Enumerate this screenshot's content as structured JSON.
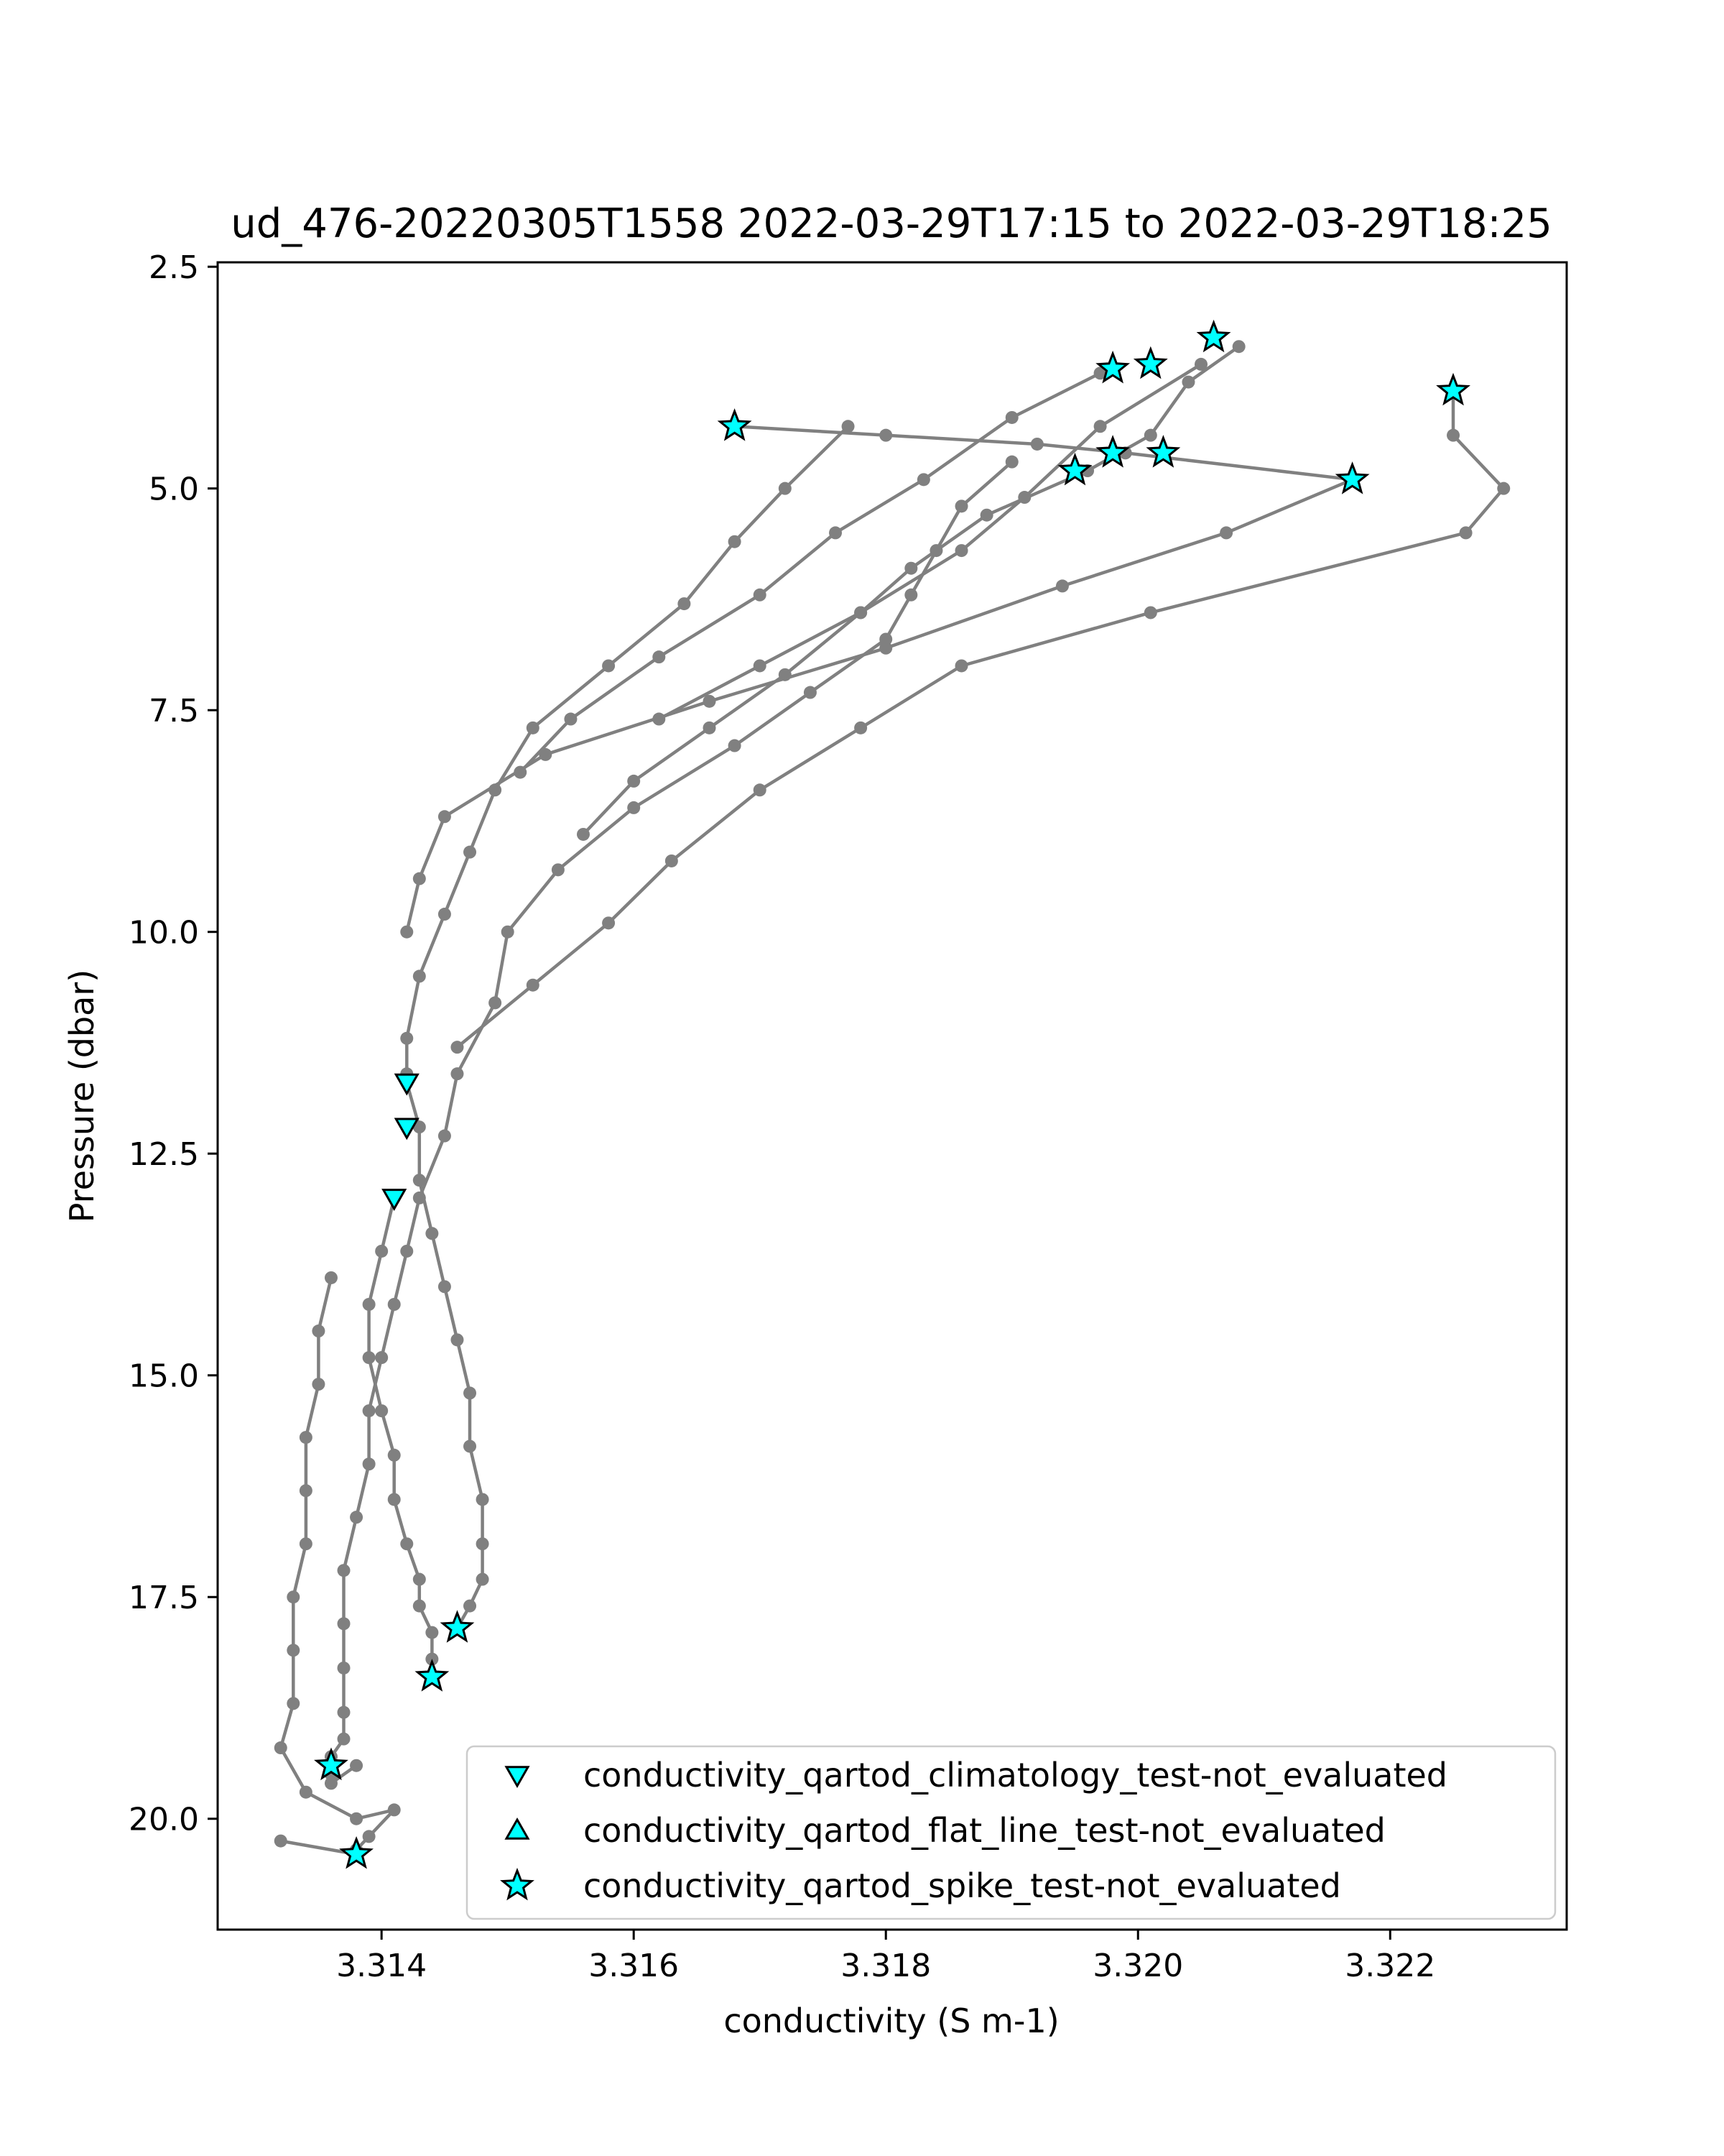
{
  "chart_data": {
    "type": "scatter",
    "title": "ud_476-20220305T1558 2022-03-29T17:15 to 2022-03-29T18:25",
    "xlabel": "conductivity (S m-1)",
    "ylabel": "Pressure (dbar)",
    "xlim": [
      3.3127,
      3.3234
    ],
    "ylim": [
      21.25,
      2.45
    ],
    "y_inverted": true,
    "xticks": [
      3.314,
      3.316,
      3.318,
      3.32,
      3.322
    ],
    "xtick_labels": [
      "3.314",
      "3.316",
      "3.318",
      "3.320",
      "3.322"
    ],
    "yticks": [
      2.5,
      5.0,
      7.5,
      10.0,
      12.5,
      15.0,
      17.5,
      20.0
    ],
    "ytick_labels": [
      "2.5",
      "5.0",
      "7.5",
      "10.0",
      "12.5",
      "15.0",
      "17.5",
      "20.0"
    ],
    "grid": false,
    "legend_position": "lower-right",
    "colors": {
      "profile": "#808080",
      "marker_fill": "#00ffff",
      "marker_edge": "#000000"
    },
    "legend": [
      {
        "label": "conductivity_qartod_climatology_test-not_evaluated",
        "marker": "triangle-down"
      },
      {
        "label": "conductivity_qartod_flat_line_test-not_evaluated",
        "marker": "triangle-up"
      },
      {
        "label": "conductivity_qartod_spike_test-not_evaluated",
        "marker": "star"
      }
    ],
    "profiles": [
      {
        "x": [
          3.3208,
          3.3204,
          3.3201,
          3.3196,
          3.3188,
          3.3182,
          3.3178,
          3.3172,
          3.3166,
          3.316,
          3.3156
        ],
        "y": [
          3.4,
          3.8,
          4.4,
          4.8,
          5.3,
          5.9,
          6.4,
          7.1,
          7.7,
          8.3,
          8.9
        ]
      },
      {
        "x": [
          3.3197,
          3.319,
          3.3183,
          3.3176,
          3.317,
          3.3162,
          3.3155,
          3.3151
        ],
        "y": [
          3.7,
          4.2,
          4.9,
          5.5,
          6.2,
          6.9,
          7.6,
          8.2
        ]
      },
      {
        "x": [
          3.3205,
          3.3197,
          3.3191,
          3.3186,
          3.3178,
          3.317,
          3.3162
        ],
        "y": [
          3.6,
          4.3,
          5.1,
          5.7,
          6.4,
          7.0,
          7.6
        ]
      },
      {
        "x": [
          3.3177,
          3.3172,
          3.3168,
          3.3164,
          3.3158,
          3.3152,
          3.3149,
          3.3147,
          3.3145,
          3.3143,
          3.3142,
          3.3142
        ],
        "y": [
          4.3,
          5.0,
          5.6,
          6.3,
          7.0,
          7.7,
          8.4,
          9.1,
          9.8,
          10.5,
          11.2,
          11.6
        ]
      },
      {
        "x": [
          3.3168,
          3.318,
          3.3192,
          3.3199,
          3.3217
        ],
        "y": [
          4.3,
          4.4,
          4.5,
          4.6,
          4.9
        ]
      },
      {
        "x": [
          3.3217,
          3.3207,
          3.3194,
          3.318,
          3.3166,
          3.3153,
          3.3145,
          3.3143,
          3.3142
        ],
        "y": [
          4.9,
          5.5,
          6.1,
          6.8,
          7.4,
          8.0,
          8.7,
          9.4,
          10.0
        ]
      },
      {
        "x": [
          3.3225,
          3.3225,
          3.3229,
          3.3226,
          3.3201,
          3.3186,
          3.3178,
          3.317,
          3.3163,
          3.3158,
          3.3152,
          3.3146
        ],
        "y": [
          3.9,
          4.4,
          5.0,
          5.5,
          6.4,
          7.0,
          7.7,
          8.4,
          9.2,
          9.9,
          10.6,
          11.3
        ]
      },
      {
        "x": [
          3.319,
          3.3186,
          3.3184,
          3.3182,
          3.318,
          3.3174,
          3.3168,
          3.316,
          3.3154,
          3.315,
          3.3149,
          3.3146,
          3.3145,
          3.3143,
          3.3142,
          3.3141,
          3.314,
          3.3139,
          3.3139,
          3.3138,
          3.3137,
          3.3137,
          3.3137,
          3.3137,
          3.3137,
          3.3136,
          3.3136,
          3.3136,
          3.3138
        ],
        "y": [
          4.7,
          5.2,
          5.7,
          6.2,
          6.7,
          7.3,
          7.9,
          8.6,
          9.3,
          10.0,
          10.8,
          11.6,
          12.3,
          13.0,
          13.6,
          14.2,
          14.8,
          15.4,
          16.0,
          16.6,
          17.2,
          17.8,
          18.3,
          18.8,
          19.1,
          19.3,
          19.5,
          19.6,
          19.4
        ]
      },
      {
        "x": [
          3.3142,
          3.3143,
          3.3143,
          3.3144,
          3.3145,
          3.3146,
          3.3147,
          3.3147,
          3.3148,
          3.3148,
          3.3148,
          3.3147,
          3.3146
        ],
        "y": [
          11.7,
          12.2,
          12.8,
          13.4,
          14.0,
          14.6,
          15.2,
          15.8,
          16.4,
          16.9,
          17.3,
          17.6,
          17.85
        ]
      },
      {
        "x": [
          3.3141,
          3.314,
          3.3139,
          3.3139,
          3.314,
          3.3141,
          3.3141,
          3.3142,
          3.3143,
          3.3143,
          3.3144,
          3.3144,
          3.3144
        ],
        "y": [
          13.0,
          13.6,
          14.2,
          14.8,
          15.4,
          15.9,
          16.4,
          16.9,
          17.3,
          17.6,
          17.9,
          18.2,
          18.4
        ]
      },
      {
        "x": [
          3.3136,
          3.3135,
          3.3135,
          3.3134,
          3.3134,
          3.3134,
          3.3133,
          3.3133,
          3.3133,
          3.3132,
          3.3134,
          3.3138,
          3.3141,
          3.3139,
          3.3138,
          3.3138
        ],
        "y": [
          13.9,
          14.5,
          15.1,
          15.7,
          16.3,
          16.9,
          17.5,
          18.1,
          18.7,
          19.2,
          19.7,
          20.0,
          19.9,
          20.2,
          20.35,
          20.4
        ]
      },
      {
        "x": [
          3.3132,
          3.3138
        ],
        "y": [
          20.25,
          20.4
        ]
      }
    ],
    "climatology_test_not_evaluated": {
      "x": [
        3.3142,
        3.3142,
        3.3141
      ],
      "y": [
        11.7,
        12.2,
        13.0
      ]
    },
    "flat_line_test_not_evaluated": {
      "x": [],
      "y": []
    },
    "spike_test_not_evaluated": {
      "x": [
        3.3206,
        3.3201,
        3.3198,
        3.3168,
        3.3225,
        3.3217,
        3.3202,
        3.3198,
        3.3195,
        3.3146,
        3.3144,
        3.3136,
        3.3138
      ],
      "y": [
        3.3,
        3.6,
        3.65,
        4.3,
        3.9,
        4.9,
        4.6,
        4.6,
        4.8,
        17.85,
        18.4,
        19.4,
        20.4
      ]
    }
  }
}
